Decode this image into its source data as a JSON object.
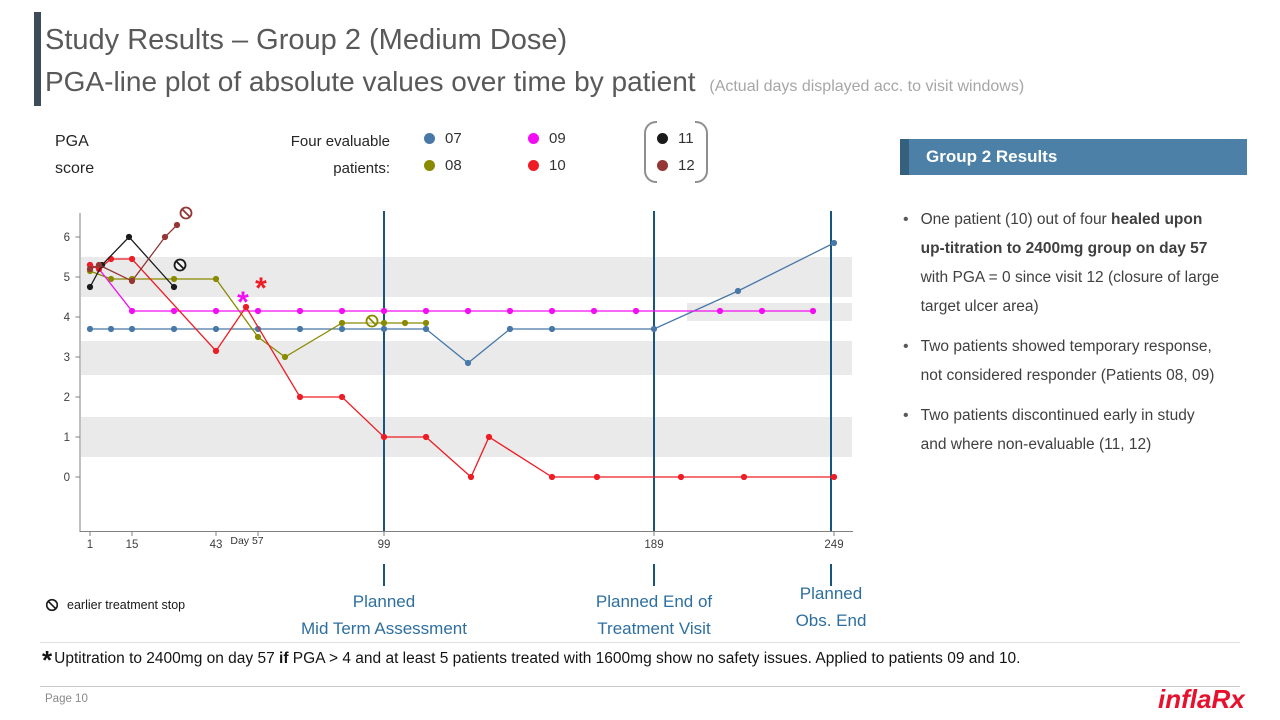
{
  "slide": {
    "title_line1": "Study Results – Group 2 (Medium Dose)",
    "title_line2": "PGA-line plot of absolute values over time by patient",
    "title_note": "(Actual days displayed acc. to visit windows)",
    "page_label": "Page 10",
    "logo_text": "inflaRx"
  },
  "colors": {
    "header_bg": "#4c80a6",
    "header_accent": "#35617f",
    "milestone_line": "#17557f",
    "milestone_text": "#2e6f9f",
    "band_gray": "#eaeaea",
    "title_gray": "#595959",
    "logo_red": "#e8112d",
    "accent_bar": "#3e4c59"
  },
  "legend": {
    "y_axis_label_line1": "PGA",
    "y_axis_label_line2": "score",
    "intro_line1": "Four evaluable",
    "intro_line2": "patients:",
    "patients": [
      {
        "id": "07",
        "color": "#4878a8"
      },
      {
        "id": "08",
        "color": "#8a8a00"
      },
      {
        "id": "09",
        "color": "#f20df2"
      },
      {
        "id": "10",
        "color": "#ee1c25"
      },
      {
        "id": "11",
        "color": "#1a1a1a"
      },
      {
        "id": "12",
        "color": "#943634"
      }
    ],
    "stop_legend": "earlier treatment stop"
  },
  "chart_data": {
    "type": "line",
    "title": "PGA-line plot of absolute values over time by patient",
    "ylabel": "PGA score",
    "xlim": [
      1,
      260
    ],
    "ylim": [
      0,
      6
    ],
    "y_ticks": [
      0,
      1,
      2,
      3,
      4,
      5,
      6
    ],
    "x_ticks": [
      1,
      15,
      43,
      99,
      189,
      249
    ],
    "x_extra_label": {
      "text": "Day 57",
      "day": 57
    },
    "bands": [
      {
        "y0": 4.5,
        "y1": 5.5
      },
      {
        "y0": 2.55,
        "y1": 3.4
      },
      {
        "y0": 0.5,
        "y1": 1.5
      },
      {
        "y0": 3.9,
        "y1": 4.35,
        "x0": 200,
        "x1": 255
      }
    ],
    "milestones": [
      {
        "day": 99,
        "label_line1": "Planned",
        "label_line2": "Mid Term Assessment"
      },
      {
        "day": 189,
        "label_line1": "Planned End of",
        "label_line2": "Treatment Visit"
      },
      {
        "day": 248,
        "label_line1": "Planned",
        "label_line2": "Obs. End"
      }
    ],
    "series": [
      {
        "name": "07",
        "color": "#4878a8",
        "points": [
          [
            1,
            3.7
          ],
          [
            8,
            3.7
          ],
          [
            15,
            3.7
          ],
          [
            29,
            3.7
          ],
          [
            43,
            3.7
          ],
          [
            57,
            3.7
          ],
          [
            71,
            3.7
          ],
          [
            85,
            3.7
          ],
          [
            99,
            3.7
          ],
          [
            113,
            3.7
          ],
          [
            127,
            2.85
          ],
          [
            141,
            3.7
          ],
          [
            155,
            3.7
          ],
          [
            189,
            3.7
          ],
          [
            217,
            4.65
          ],
          [
            249,
            5.85
          ]
        ]
      },
      {
        "name": "08",
        "color": "#8a8a00",
        "points": [
          [
            1,
            5.15
          ],
          [
            8,
            4.95
          ],
          [
            15,
            4.95
          ],
          [
            29,
            4.95
          ],
          [
            43,
            4.95
          ],
          [
            57,
            3.5
          ],
          [
            66,
            3.0
          ],
          [
            85,
            3.85
          ],
          [
            99,
            3.85
          ],
          [
            106,
            3.85
          ],
          [
            113,
            3.85
          ]
        ]
      },
      {
        "name": "09",
        "color": "#f20df2",
        "points": [
          [
            1,
            5.3
          ],
          [
            4,
            5.2
          ],
          [
            15,
            4.15
          ],
          [
            29,
            4.15
          ],
          [
            43,
            4.15
          ],
          [
            57,
            4.15
          ],
          [
            71,
            4.15
          ],
          [
            85,
            4.15
          ],
          [
            99,
            4.15
          ],
          [
            113,
            4.15
          ],
          [
            127,
            4.15
          ],
          [
            141,
            4.15
          ],
          [
            155,
            4.15
          ],
          [
            169,
            4.15
          ],
          [
            183,
            4.15
          ],
          [
            211,
            4.15
          ],
          [
            225,
            4.15
          ],
          [
            242,
            4.15
          ]
        ]
      },
      {
        "name": "10",
        "color": "#ee1c25",
        "points": [
          [
            1,
            5.3
          ],
          [
            4,
            5.2
          ],
          [
            8,
            5.45
          ],
          [
            15,
            5.45
          ],
          [
            43,
            3.15
          ],
          [
            53,
            4.25
          ],
          [
            71,
            2.0
          ],
          [
            85,
            2.0
          ],
          [
            99,
            1.0
          ],
          [
            113,
            1.0
          ],
          [
            128,
            0
          ],
          [
            134,
            1.0
          ],
          [
            155,
            0
          ],
          [
            170,
            0
          ],
          [
            198,
            0
          ],
          [
            219,
            0
          ],
          [
            249,
            0
          ]
        ]
      },
      {
        "name": "11",
        "color": "#1a1a1a",
        "points": [
          [
            1,
            4.75
          ],
          [
            5,
            5.3
          ],
          [
            14,
            6.0
          ],
          [
            29,
            4.75
          ]
        ]
      },
      {
        "name": "12",
        "color": "#943634",
        "points": [
          [
            1,
            5.2
          ],
          [
            4,
            5.3
          ],
          [
            15,
            4.9
          ],
          [
            26,
            6.0
          ],
          [
            30,
            6.3
          ]
        ]
      }
    ],
    "stop_markers": [
      {
        "patient": "12",
        "day": 33,
        "value": 6.6,
        "color": "#943634"
      },
      {
        "patient": "11",
        "day": 31,
        "value": 5.3,
        "color": "#1a1a1a"
      },
      {
        "patient": "08",
        "day": 95,
        "value": 3.9,
        "color": "#8a8a00"
      }
    ],
    "asterisks": [
      {
        "day": 52,
        "value": 4.4,
        "color": "#f20df2"
      },
      {
        "day": 58,
        "value": 4.75,
        "color": "#ee1c25"
      }
    ]
  },
  "results_panel": {
    "header": "Group 2 Results",
    "bullet_char": "•",
    "bullets": [
      {
        "pre": "One patient (10) out of four ",
        "bold": "healed upon up-titration to 2400mg group on day 57",
        "post": " with PGA = 0 since visit 12 (closure of large target ulcer area)"
      },
      {
        "pre": "Two patients showed temporary response, not considered responder (Patients 08, 09)",
        "bold": "",
        "post": ""
      },
      {
        "pre": "Two patients discontinued early in study and where non-evaluable (11, 12)",
        "bold": "",
        "post": ""
      }
    ]
  },
  "footnote": {
    "asterisk": "*",
    "pre": "Uptitration to 2400mg on day 57 ",
    "bold": "if",
    "post": " PGA > 4 and at least 5 patients treated with 1600mg show no safety issues. Applied to patients 09 and 10."
  }
}
